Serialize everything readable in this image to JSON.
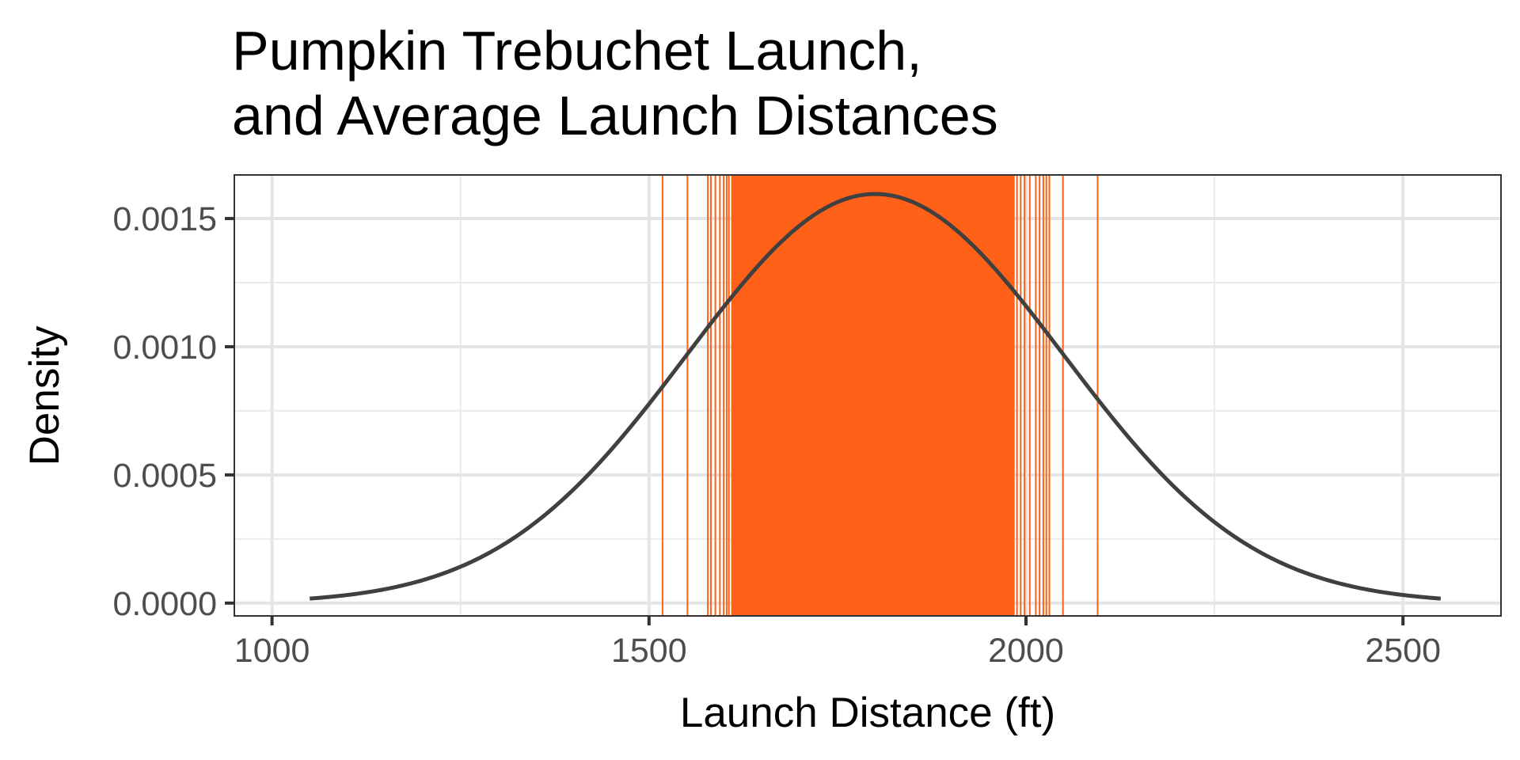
{
  "chart_data": {
    "type": "line",
    "title_lines": [
      "Pumpkin Trebuchet Launch,",
      "and Average Launch Distances"
    ],
    "xlabel": "Launch Distance (ft)",
    "ylabel": "Density",
    "xlim": [
      950,
      2630
    ],
    "ylim": [
      -5e-05,
      0.00167
    ],
    "x_ticks": [
      1000,
      1500,
      2000,
      2500
    ],
    "x_tick_labels": [
      "1000",
      "1500",
      "2000",
      "2500"
    ],
    "y_ticks": [
      0,
      0.0005,
      0.001,
      0.0015
    ],
    "y_tick_labels": [
      "0.0000",
      "0.0005",
      "0.0010",
      "0.0015"
    ],
    "grid": true,
    "density_curve": {
      "distribution": "normal",
      "mean": 1800,
      "sd": 250,
      "x_range": [
        1050,
        2550
      ],
      "color": "#404040"
    },
    "launch_averages": {
      "color": "#ff6119",
      "values": [
        1518,
        1551,
        1578,
        1582,
        1588,
        1594,
        1599,
        1603,
        1606,
        1610,
        1988,
        1993,
        1998,
        2005,
        2013,
        2018,
        2023,
        2027,
        2031,
        2049,
        2095
      ],
      "dense_band": [
        1610,
        1985
      ]
    }
  }
}
